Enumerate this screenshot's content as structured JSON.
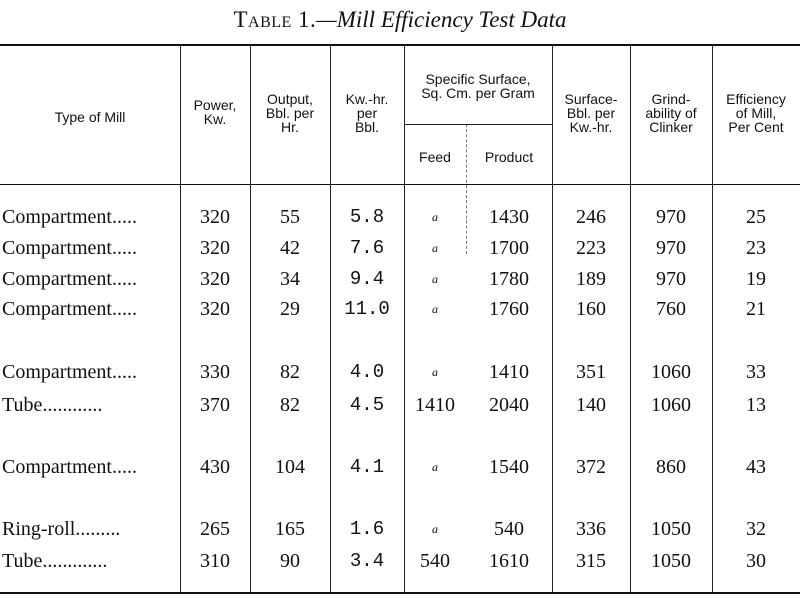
{
  "table": {
    "title_prefix": "Table 1.",
    "title_text": "—Mill Efficiency Test Data",
    "headers": {
      "type": "Type of Mill",
      "power": "Power,\nKw.",
      "output": "Output,\nBbl. per\nHr.",
      "kwhr": "Kw.-hr.\nper\nBbl.",
      "specific": "Specific Surface,\nSq. Cm. per Gram",
      "feed": "Feed",
      "product": "Product",
      "surface": "Surface-\nBbl. per\nKw.-hr.",
      "grind": "Grind-\nability of\nClinker",
      "eff": "Efficiency\nof Mill,\nPer Cent"
    },
    "rows": [
      {
        "mill": "Compartment.....",
        "power": "320",
        "output": "55",
        "kwhr": "5.8",
        "feed": "a",
        "product": "1430",
        "surface": "246",
        "grind": "970",
        "eff": "25"
      },
      {
        "mill": "Compartment.....",
        "power": "320",
        "output": "42",
        "kwhr": "7.6",
        "feed": "a",
        "product": "1700",
        "surface": "223",
        "grind": "970",
        "eff": "23"
      },
      {
        "mill": "Compartment.....",
        "power": "320",
        "output": "34",
        "kwhr": "9.4",
        "feed": "a",
        "product": "1780",
        "surface": "189",
        "grind": "970",
        "eff": "19"
      },
      {
        "mill": "Compartment.....",
        "power": "320",
        "output": "29",
        "kwhr": "11.0",
        "feed": "a",
        "product": "1760",
        "surface": "160",
        "grind": "760",
        "eff": "21"
      },
      {
        "mill": "Compartment.....",
        "power": "330",
        "output": "82",
        "kwhr": "4.0",
        "feed": "a",
        "product": "1410",
        "surface": "351",
        "grind": "1060",
        "eff": "33"
      },
      {
        "mill": "Tube............",
        "power": "370",
        "output": "82",
        "kwhr": "4.5",
        "feed": "1410",
        "product": "2040",
        "surface": "140",
        "grind": "1060",
        "eff": "13"
      },
      {
        "mill": "Compartment.....",
        "power": "430",
        "output": "104",
        "kwhr": "4.1",
        "feed": "a",
        "product": "1540",
        "surface": "372",
        "grind": "860",
        "eff": "43"
      },
      {
        "mill": "Ring-roll.........",
        "power": "265",
        "output": "165",
        "kwhr": "1.6",
        "feed": "a",
        "product": "540",
        "surface": "336",
        "grind": "1050",
        "eff": "32"
      },
      {
        "mill": "Tube.............",
        "power": "310",
        "output": "90",
        "kwhr": "3.4",
        "feed": "540",
        "product": "1610",
        "surface": "315",
        "grind": "1050",
        "eff": "30"
      }
    ]
  }
}
